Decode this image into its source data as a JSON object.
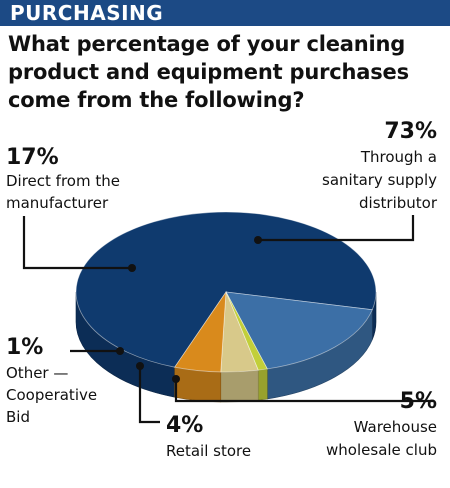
{
  "header": {
    "section": "PURCHASING",
    "question_lines": [
      "What percentage of your cleaning",
      "product and equipment purchases",
      "come from the following?"
    ]
  },
  "colors": {
    "banner": "#1c4a85",
    "distributor": "#0f3a6e",
    "manufacturer": "#3c6fa6",
    "other": "#c2cf3a",
    "retail": "#d8c98a",
    "warehouse": "#d98a1c"
  },
  "chart_data": {
    "type": "pie",
    "style": "3d",
    "slices": [
      {
        "label": "Through a sanitary supply distributor",
        "value": 73,
        "value_label": "73%",
        "label_lines": [
          "Through a",
          "sanitary supply",
          "distributor"
        ]
      },
      {
        "label": "Direct from the manufacturer",
        "value": 17,
        "value_label": "17%",
        "label_lines": [
          "Direct from the",
          "manufacturer"
        ]
      },
      {
        "label": "Other — Cooperative Bid",
        "value": 1,
        "value_label": "1%",
        "label_lines": [
          "Other —",
          "Cooperative",
          "Bid"
        ]
      },
      {
        "label": "Retail store",
        "value": 4,
        "value_label": "4%",
        "label_lines": [
          "Retail store"
        ]
      },
      {
        "label": "Warehouse wholesale club",
        "value": 5,
        "value_label": "5%",
        "label_lines": [
          "Warehouse",
          "wholesale club"
        ]
      }
    ]
  }
}
